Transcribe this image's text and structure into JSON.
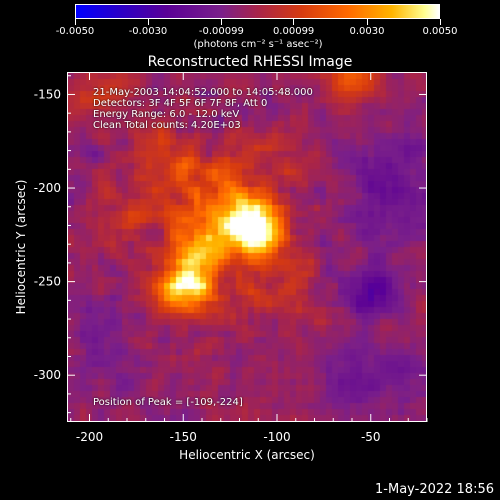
{
  "colorbar": {
    "ticks": [
      "-0.0050",
      "-0.0030",
      "-0.00099",
      "0.00099",
      "0.0030",
      "0.0050"
    ],
    "unit": "(photons cm⁻² s⁻¹ asec⁻²)",
    "colors": [
      "#0000ff",
      "#5a0096",
      "#a8244a",
      "#ff6a00",
      "#ffb400",
      "#ffffff"
    ]
  },
  "annotations": {
    "time_range": "21-May-2003 14:04:52.000 to 14:05:48.000",
    "detectors": "Detectors: 3F 4F 5F 6F 7F 8F, Att 0",
    "energy": "Energy Range: 6.0 - 12.0 keV",
    "clean": "Clean     Total counts: 4.20E+03",
    "peak": "Position of Peak = [-109,-224]"
  },
  "timestamp": "1-May-2022 18:56",
  "chart_data": {
    "type": "heatmap",
    "title": "Reconstructed RHESSI Image",
    "xlabel": "Heliocentric X (arcsec)",
    "ylabel": "Heliocentric Y (arcsec)",
    "xlim": [
      -212,
      -20
    ],
    "ylim": [
      -325,
      -138
    ],
    "xticks": [
      -200,
      -150,
      -100,
      -50
    ],
    "xtick_labels": [
      "-200",
      "-150",
      "-100",
      "-50"
    ],
    "yticks": [
      -150,
      -200,
      -250,
      -300
    ],
    "ytick_labels": [
      "-150",
      "-200",
      "-250",
      "-300"
    ],
    "color_range": [
      -0.005,
      0.005
    ],
    "peak": [
      -109,
      -224
    ],
    "sources": [
      {
        "x": -109,
        "y": -224,
        "amp": 0.005,
        "sx": 9,
        "sy": 9
      },
      {
        "x": -118,
        "y": -212,
        "amp": 0.0032,
        "sx": 12,
        "sy": 10
      },
      {
        "x": -145,
        "y": -240,
        "amp": 0.0035,
        "sx": 10,
        "sy": 14
      },
      {
        "x": -155,
        "y": -255,
        "amp": 0.003,
        "sx": 9,
        "sy": 7
      },
      {
        "x": -132,
        "y": -230,
        "amp": 0.0018,
        "sx": 16,
        "sy": 20
      },
      {
        "x": -170,
        "y": -210,
        "amp": 0.0015,
        "sx": 14,
        "sy": 12
      },
      {
        "x": -140,
        "y": -190,
        "amp": 0.0018,
        "sx": 12,
        "sy": 10
      },
      {
        "x": -95,
        "y": -250,
        "amp": 0.0012,
        "sx": 12,
        "sy": 14
      },
      {
        "x": -60,
        "y": -140,
        "amp": 0.0025,
        "sx": 10,
        "sy": 8
      },
      {
        "x": -195,
        "y": -150,
        "amp": 0.0014,
        "sx": 12,
        "sy": 10
      },
      {
        "x": -100,
        "y": -185,
        "amp": 0.001,
        "sx": 14,
        "sy": 12
      },
      {
        "x": -165,
        "y": -180,
        "amp": 0.0012,
        "sx": 10,
        "sy": 10
      },
      {
        "x": -50,
        "y": -255,
        "amp": -0.0022,
        "sx": 10,
        "sy": 10
      },
      {
        "x": -40,
        "y": -200,
        "amp": -0.0012,
        "sx": 18,
        "sy": 22
      },
      {
        "x": -50,
        "y": -300,
        "amp": -0.001,
        "sx": 20,
        "sy": 14
      },
      {
        "x": -195,
        "y": -280,
        "amp": -0.0008,
        "sx": 14,
        "sy": 18
      },
      {
        "x": -210,
        "y": -180,
        "amp": -0.0006,
        "sx": 10,
        "sy": 16
      }
    ],
    "background": -0.0004
  }
}
